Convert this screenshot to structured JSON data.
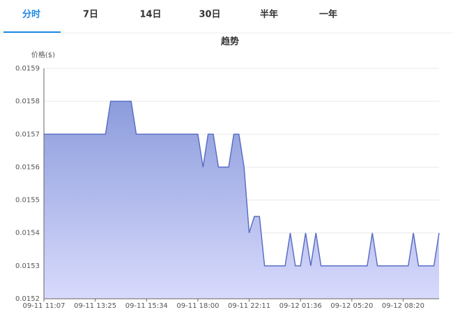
{
  "tabs": [
    "分时",
    "7日",
    "14日",
    "30日",
    "半年",
    "一年"
  ],
  "active_tab": 0,
  "chart_data": {
    "type": "area",
    "title": "趋势",
    "y_label": "价格($)",
    "categories": [
      "09-11 11:07",
      null,
      null,
      null,
      null,
      null,
      null,
      null,
      null,
      null,
      "09-11 13:25",
      null,
      null,
      null,
      null,
      null,
      null,
      null,
      null,
      null,
      "09-11 15:34",
      null,
      null,
      null,
      null,
      null,
      null,
      null,
      null,
      null,
      "09-11 18:00",
      null,
      null,
      null,
      null,
      null,
      null,
      null,
      null,
      null,
      "09-11 22:11",
      null,
      null,
      null,
      null,
      null,
      null,
      null,
      null,
      null,
      "09-12 01:36",
      null,
      null,
      null,
      null,
      null,
      null,
      null,
      null,
      null,
      "09-12 05:20",
      null,
      null,
      null,
      null,
      null,
      null,
      null,
      null,
      null,
      "09-12 08:20",
      null,
      null,
      null,
      null,
      null,
      null,
      null
    ],
    "series": [
      {
        "color": "#5b6fc4",
        "values": [
          0.0157,
          0.0157,
          0.0157,
          0.0157,
          0.0157,
          0.0157,
          0.0157,
          0.0157,
          0.0157,
          0.0157,
          0.0157,
          0.0157,
          0.0157,
          0.0158,
          0.0158,
          0.0158,
          0.0158,
          0.0158,
          0.0157,
          0.0157,
          0.0157,
          0.0157,
          0.0157,
          0.0157,
          0.0157,
          0.0157,
          0.0157,
          0.0157,
          0.0157,
          0.0157,
          0.0157,
          0.0156,
          0.0157,
          0.0157,
          0.0156,
          0.0156,
          0.0156,
          0.0157,
          0.0157,
          0.0156,
          0.0154,
          0.01545,
          0.01545,
          0.0153,
          0.0153,
          0.0153,
          0.0153,
          0.0153,
          0.0154,
          0.0153,
          0.0153,
          0.0154,
          0.0153,
          0.0154,
          0.0153,
          0.0153,
          0.0153,
          0.0153,
          0.0153,
          0.0153,
          0.0153,
          0.0153,
          0.0153,
          0.0153,
          0.0154,
          0.0153,
          0.0153,
          0.0153,
          0.0153,
          0.0153,
          0.0153,
          0.0153,
          0.0154,
          0.0153,
          0.0153,
          0.0153,
          0.0153,
          0.0154
        ]
      }
    ],
    "ylim": [
      0.0152,
      0.0159
    ],
    "yticks": [
      0.0152,
      0.0153,
      0.0154,
      0.0155,
      0.0156,
      0.0157,
      0.0158,
      0.0159
    ],
    "grid": true
  }
}
